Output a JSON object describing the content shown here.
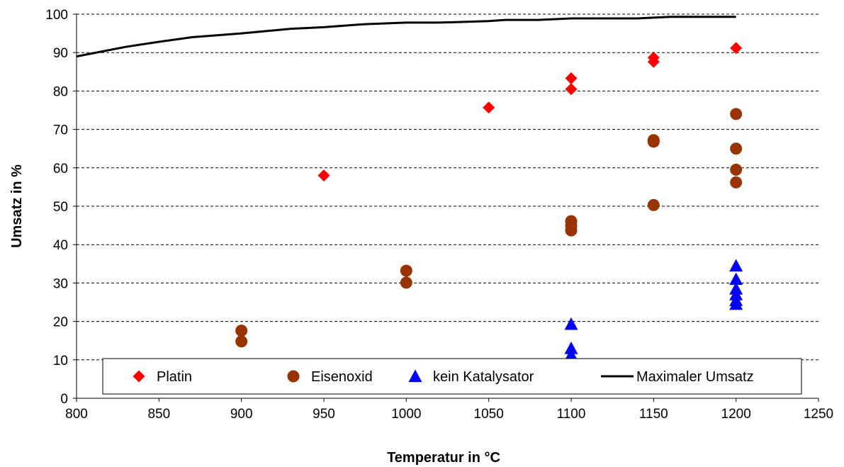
{
  "chart_data": {
    "type": "scatter",
    "xlabel": "Temperatur in °C",
    "ylabel": "Umsatz in %",
    "xlim": [
      800,
      1250
    ],
    "ylim": [
      0,
      100
    ],
    "xticks": [
      800,
      850,
      900,
      950,
      1000,
      1050,
      1100,
      1150,
      1200,
      1250
    ],
    "yticks": [
      0,
      10,
      20,
      30,
      40,
      50,
      60,
      70,
      80,
      90,
      100
    ],
    "grid": "horizontal dashed",
    "legend_position": "bottom",
    "series": [
      {
        "name": "Platin",
        "marker": "diamond",
        "color": "#ff0000",
        "points": [
          [
            950,
            58
          ],
          [
            1050,
            75.7
          ],
          [
            1100,
            83.3
          ],
          [
            1100,
            80.5
          ],
          [
            1150,
            88.7
          ],
          [
            1150,
            87.6
          ],
          [
            1200,
            91.2
          ]
        ]
      },
      {
        "name": "Eisenoxid",
        "marker": "circle",
        "color": "#993300",
        "points": [
          [
            900,
            17.6
          ],
          [
            900,
            14.8
          ],
          [
            1000,
            33.2
          ],
          [
            1000,
            30.1
          ],
          [
            1100,
            46.1
          ],
          [
            1100,
            44.9
          ],
          [
            1100,
            43.7
          ],
          [
            1150,
            67.2
          ],
          [
            1150,
            66.8
          ],
          [
            1150,
            50.3
          ],
          [
            1200,
            74
          ],
          [
            1200,
            65
          ],
          [
            1200,
            59.5
          ],
          [
            1200,
            56.2
          ]
        ]
      },
      {
        "name": "kein Katalysator",
        "marker": "triangle",
        "color": "#0000ff",
        "points": [
          [
            1100,
            19.3
          ],
          [
            1100,
            13
          ],
          [
            1100,
            11.3
          ],
          [
            1200,
            34.5
          ],
          [
            1200,
            31
          ],
          [
            1200,
            28.5
          ],
          [
            1200,
            27
          ],
          [
            1200,
            25.5
          ],
          [
            1200,
            24.5
          ]
        ]
      },
      {
        "name": "Maximaler Umsatz",
        "marker": "line",
        "color": "#000000",
        "points": [
          [
            800,
            89
          ],
          [
            830,
            91.5
          ],
          [
            850,
            92.8
          ],
          [
            870,
            94
          ],
          [
            900,
            95
          ],
          [
            930,
            96.2
          ],
          [
            950,
            96.6
          ],
          [
            975,
            97.4
          ],
          [
            1000,
            97.8
          ],
          [
            1020,
            97.8
          ],
          [
            1050,
            98.2
          ],
          [
            1060,
            98.5
          ],
          [
            1080,
            98.5
          ],
          [
            1100,
            98.9
          ],
          [
            1140,
            98.9
          ],
          [
            1160,
            99.3
          ],
          [
            1200,
            99.3
          ]
        ]
      }
    ]
  }
}
